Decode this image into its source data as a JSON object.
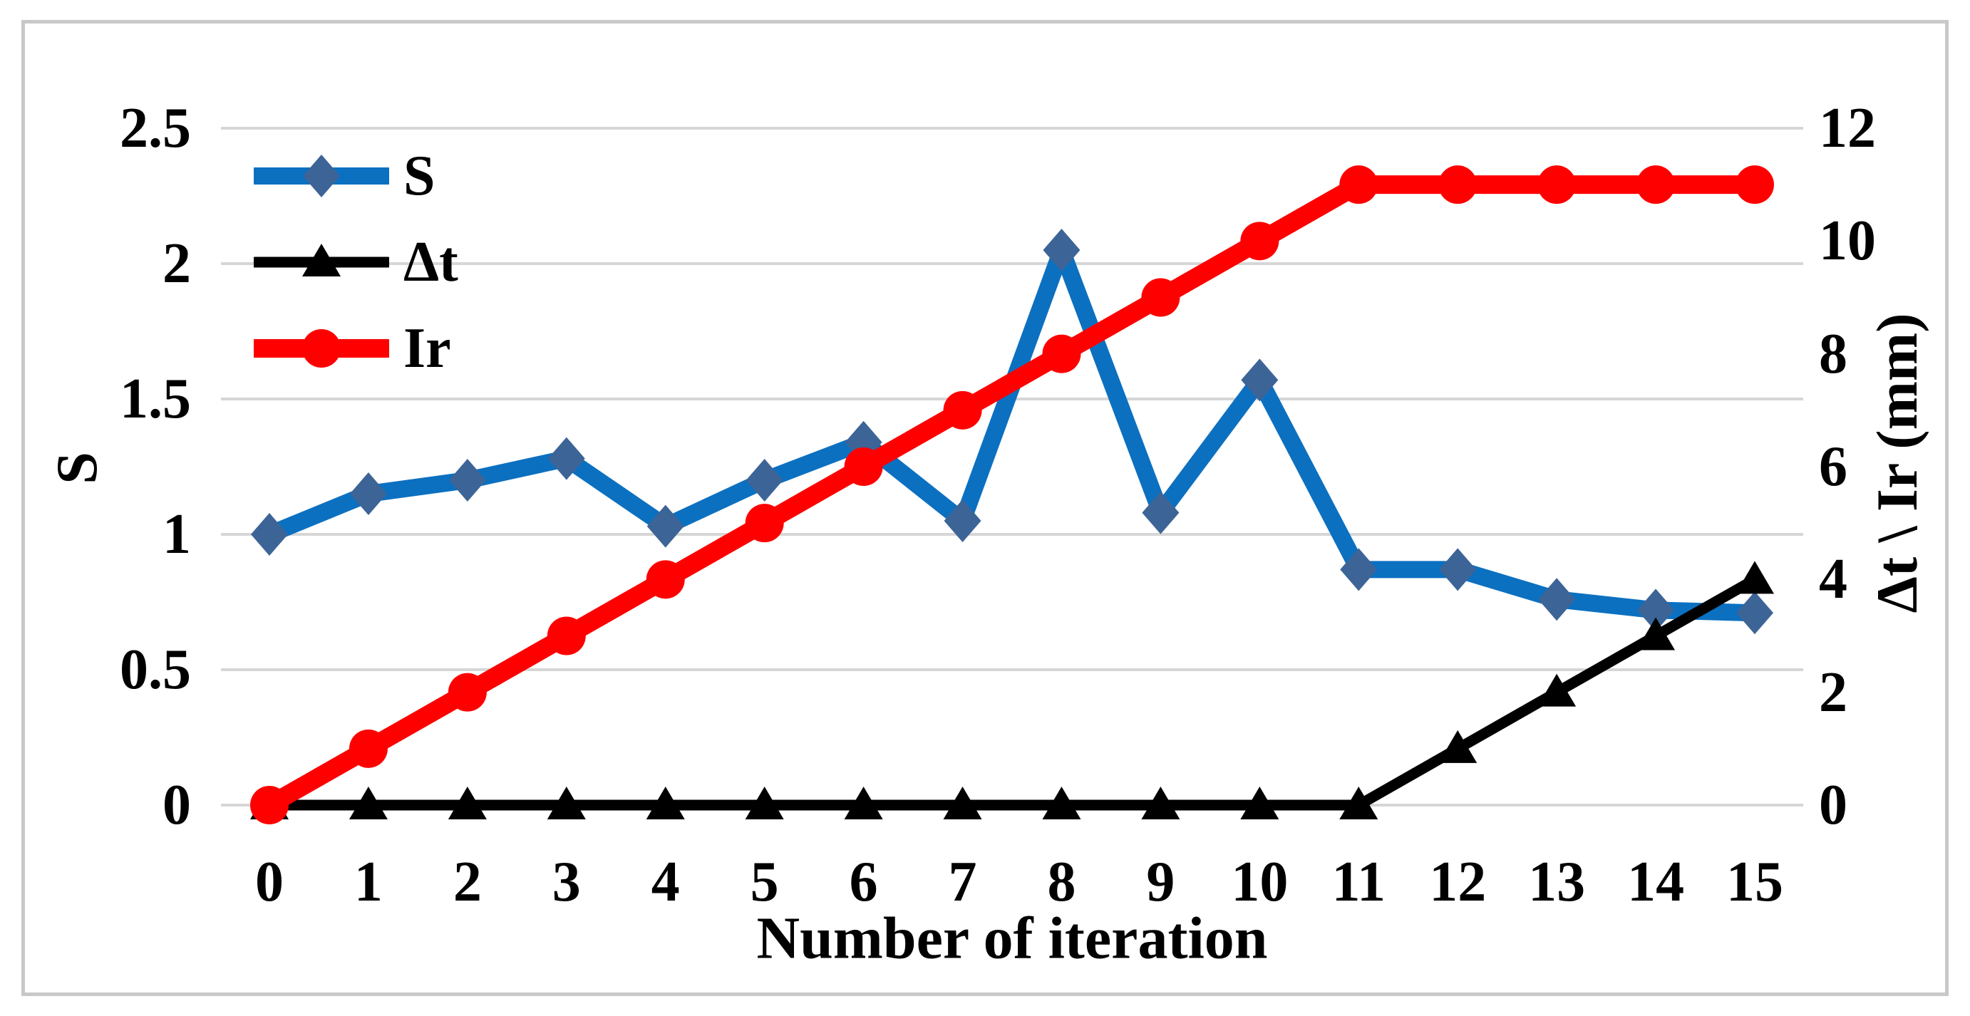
{
  "chart_data": {
    "type": "line",
    "title": "",
    "xlabel": "Number of iteration",
    "x_categories": [
      "0",
      "1",
      "2",
      "3",
      "4",
      "5",
      "6",
      "7",
      "8",
      "9",
      "10",
      "11",
      "12",
      "13",
      "14",
      "15"
    ],
    "left_axis": {
      "label": "S",
      "min": 0,
      "max": 2.5,
      "ticks": [
        0,
        0.5,
        1,
        1.5,
        2,
        2.5
      ],
      "tick_labels": [
        "0",
        "0.5",
        "1",
        "1.5",
        "2",
        "2.5"
      ]
    },
    "right_axis": {
      "label": "Δt \\ Ir (mm)",
      "min": 0,
      "max": 12,
      "ticks": [
        0,
        2,
        4,
        6,
        8,
        10,
        12
      ],
      "tick_labels": [
        "0",
        "2",
        "4",
        "6",
        "8",
        "10",
        "12"
      ]
    },
    "grid": true,
    "legend_position": "top-left",
    "series": [
      {
        "name": "S",
        "axis": "left",
        "marker": "diamond",
        "color": "#0C70C0",
        "marker_color": "#3D6496",
        "values": [
          1.0,
          1.15,
          1.2,
          1.28,
          1.03,
          1.2,
          1.34,
          1.05,
          2.05,
          1.08,
          1.57,
          0.87,
          0.87,
          0.76,
          0.72,
          0.71
        ]
      },
      {
        "name": "Δt",
        "axis": "right",
        "marker": "triangle",
        "color": "#000000",
        "marker_color": "#000000",
        "values": [
          0,
          0,
          0,
          0,
          0,
          0,
          0,
          0,
          0,
          0,
          0,
          0,
          1,
          2,
          3,
          4
        ]
      },
      {
        "name": "Ir",
        "axis": "right",
        "marker": "circle",
        "color": "#FE0000",
        "marker_color": "#FE0000",
        "values": [
          0,
          1,
          2,
          3,
          4,
          5,
          6,
          7,
          8,
          9,
          10,
          11,
          11,
          11,
          11,
          11
        ]
      }
    ]
  },
  "colors": {
    "gridline": "#D6D6D6",
    "frame": "#C8C8C8",
    "text": "#000000",
    "background": "#FFFFFF"
  }
}
